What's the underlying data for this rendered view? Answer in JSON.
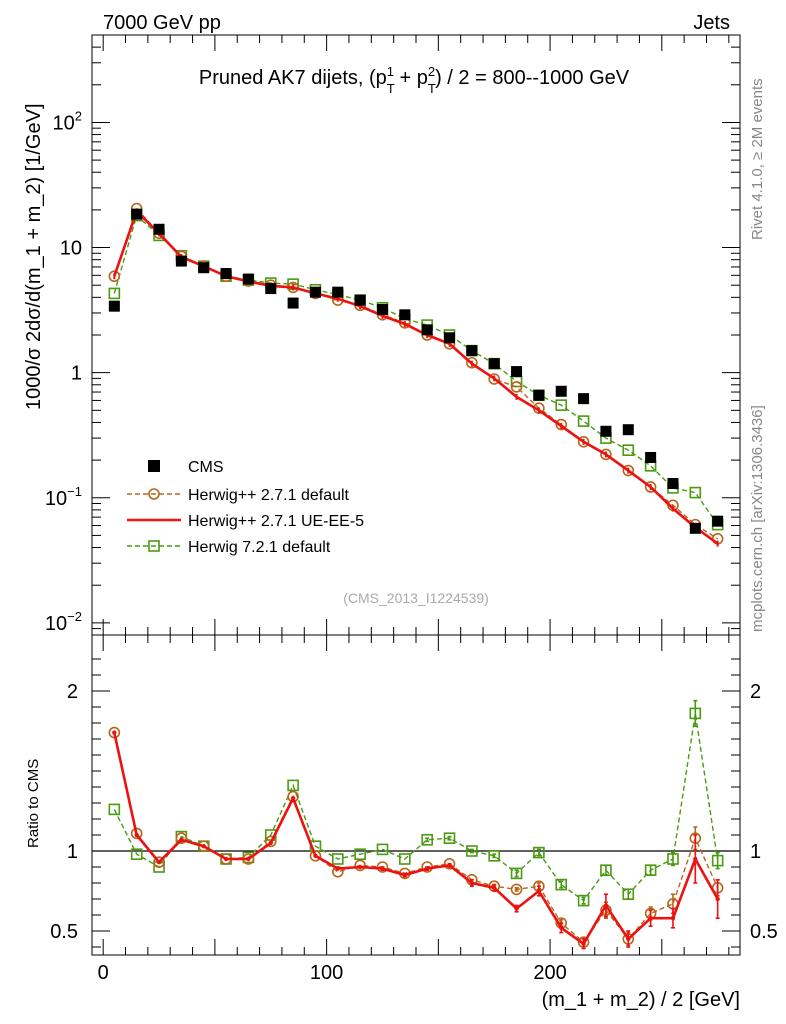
{
  "header": {
    "left": "7000 GeV pp",
    "right": "Jets"
  },
  "side": {
    "rivet": "Rivet 4.1.0, ≥ 2M events",
    "mcplots": "mcplots.cern.ch [arXiv:1306.3436]"
  },
  "chart_data": [
    {
      "type": "scatter",
      "panel": "main",
      "title": "Pruned AK7 dijets, (p_T^1 + p_T^2) / 2 = 800--1000 GeV",
      "ylabel": "1000/σ  2dσ/d(m_1 + m_2) [1/GeV]",
      "yscale": "log",
      "ylim": [
        0.008,
        500
      ],
      "xlim": [
        -5,
        285
      ],
      "yticks": [
        {
          "label": "10^-2",
          "base": "10",
          "exp": "−2"
        },
        {
          "label": "10^-1",
          "base": "10",
          "exp": "−1"
        },
        {
          "label": "1",
          "base": "1",
          "exp": ""
        },
        {
          "label": "10",
          "base": "10",
          "exp": ""
        },
        {
          "label": "10^2",
          "base": "10",
          "exp": "2"
        }
      ],
      "watermark": "(CMS_2013_I1224539)",
      "x": [
        5,
        15,
        25,
        35,
        45,
        55,
        65,
        75,
        85,
        95,
        105,
        115,
        125,
        135,
        145,
        155,
        165,
        175,
        185,
        195,
        205,
        215,
        225,
        235,
        245,
        255,
        265,
        275
      ],
      "series": [
        {
          "name": "CMS",
          "style": "data",
          "color": "#000000",
          "values": [
            3.4,
            18.5,
            14.0,
            7.8,
            6.9,
            6.2,
            5.6,
            4.7,
            3.6,
            4.4,
            4.4,
            3.8,
            3.2,
            2.9,
            2.2,
            1.9,
            1.5,
            1.18,
            1.02,
            0.66,
            0.71,
            0.62,
            0.34,
            0.35,
            0.21,
            0.13,
            0.057,
            0.065
          ]
        },
        {
          "name": "Herwig++ 2.7.1 default",
          "style": "circle",
          "color": "#b8651b",
          "values": [
            5.9,
            20.5,
            13.0,
            8.5,
            7.1,
            5.9,
            5.4,
            5.0,
            4.8,
            4.3,
            3.8,
            3.45,
            2.9,
            2.5,
            2.0,
            1.7,
            1.2,
            0.89,
            0.77,
            0.52,
            0.385,
            0.28,
            0.222,
            0.165,
            0.122,
            0.087,
            0.061,
            0.047
          ]
        },
        {
          "name": "Herwig++ 2.7.1 UE-EE-5",
          "style": "solid",
          "color": "#ee1111",
          "values": [
            5.9,
            19.5,
            13.0,
            8.4,
            7.1,
            5.9,
            5.35,
            4.95,
            4.8,
            4.3,
            3.9,
            3.4,
            2.85,
            2.45,
            2.0,
            1.7,
            1.18,
            0.9,
            0.64,
            0.5,
            0.375,
            0.28,
            0.222,
            0.165,
            0.122,
            0.082,
            0.058,
            0.043
          ]
        },
        {
          "name": "Herwig 7.2.1 default",
          "style": "square",
          "color": "#4a9a12",
          "values": [
            4.3,
            18.0,
            12.5,
            8.6,
            7.1,
            5.9,
            5.5,
            5.2,
            5.1,
            4.6,
            4.2,
            3.8,
            3.3,
            2.7,
            2.4,
            2.0,
            1.5,
            1.18,
            0.85,
            0.66,
            0.55,
            0.41,
            0.3,
            0.24,
            0.18,
            0.12,
            0.11,
            0.061
          ]
        }
      ],
      "legend": {
        "position": "bottom-left"
      }
    },
    {
      "type": "line",
      "panel": "ratio",
      "ylabel": "Ratio to CMS",
      "xlabel": "(m_1 + m_2) / 2 [GeV]",
      "ylim": [
        0.35,
        2.35
      ],
      "yticks": [
        "0.5",
        "1",
        "2"
      ],
      "xticks": [
        0,
        100,
        200
      ],
      "xticklabels": [
        "0",
        "100",
        "200"
      ],
      "x": [
        5,
        15,
        25,
        35,
        45,
        55,
        65,
        75,
        85,
        95,
        105,
        115,
        125,
        135,
        145,
        155,
        165,
        175,
        185,
        195,
        205,
        215,
        225,
        235,
        245,
        255,
        265,
        275
      ],
      "series": [
        {
          "name": "Herwig++ 2.7.1 default",
          "style": "circle",
          "color": "#b8651b",
          "values": [
            1.74,
            1.11,
            0.93,
            1.08,
            1.03,
            0.95,
            0.95,
            1.06,
            1.34,
            0.97,
            0.87,
            0.91,
            0.9,
            0.86,
            0.9,
            0.92,
            0.82,
            0.78,
            0.76,
            0.78,
            0.55,
            0.43,
            0.63,
            0.45,
            0.61,
            0.67,
            1.08,
            0.77
          ],
          "errors": [
            0,
            0,
            0,
            0,
            0,
            0,
            0,
            0,
            0,
            0,
            0,
            0,
            0,
            0,
            0,
            0,
            0,
            0.01,
            0.01,
            0.02,
            0.02,
            0.03,
            0.05,
            0.04,
            0.04,
            0.06,
            0.07,
            0.05
          ]
        },
        {
          "name": "Herwig++ 2.7.1 UE-EE-5",
          "style": "solid",
          "color": "#ee1111",
          "values": [
            1.74,
            1.1,
            0.93,
            1.07,
            1.03,
            0.95,
            0.95,
            1.05,
            1.33,
            0.97,
            0.89,
            0.9,
            0.89,
            0.85,
            0.89,
            0.91,
            0.8,
            0.77,
            0.64,
            0.75,
            0.52,
            0.42,
            0.66,
            0.45,
            0.58,
            0.58,
            0.95,
            0.7
          ],
          "errors": [
            0,
            0,
            0,
            0,
            0,
            0,
            0,
            0,
            0,
            0,
            0,
            0,
            0.01,
            0.01,
            0.01,
            0.01,
            0.02,
            0.02,
            0.02,
            0.03,
            0.03,
            0.03,
            0.07,
            0.05,
            0.05,
            0.06,
            0.15,
            0.12
          ]
        },
        {
          "name": "Herwig 7.2.1 default",
          "style": "square",
          "color": "#4a9a12",
          "values": [
            1.26,
            0.98,
            0.9,
            1.09,
            1.03,
            0.95,
            0.96,
            1.1,
            1.41,
            1.03,
            0.95,
            0.98,
            1.01,
            0.95,
            1.07,
            1.08,
            1.0,
            0.97,
            0.86,
            0.99,
            0.79,
            0.69,
            0.88,
            0.73,
            0.88,
            0.95,
            1.86,
            0.94
          ],
          "errors": [
            0,
            0,
            0,
            0,
            0,
            0,
            0,
            0,
            0,
            0,
            0,
            0,
            0,
            0,
            0.01,
            0.01,
            0.01,
            0.01,
            0.02,
            0.02,
            0.02,
            0.02,
            0.03,
            0.03,
            0.03,
            0.04,
            0.08,
            0.05
          ]
        }
      ]
    }
  ]
}
